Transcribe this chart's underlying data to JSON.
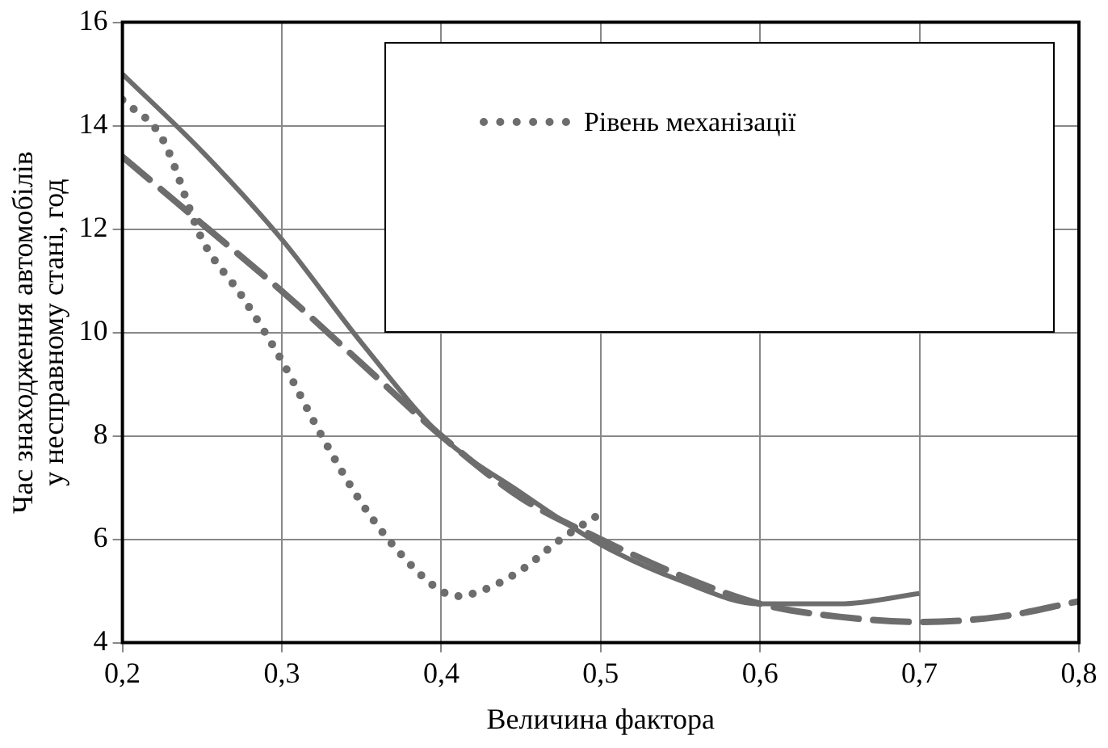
{
  "chart_data": {
    "type": "line",
    "xlabel": "Величина фактора",
    "ylabel": "Час знаходження автомобілів у несправному стані, год",
    "xlim": [
      0.2,
      0.8
    ],
    "xticks": [
      {
        "value": 0.2,
        "label": "0,2"
      },
      {
        "value": 0.3,
        "label": "0,3"
      },
      {
        "value": 0.4,
        "label": "0,4"
      },
      {
        "value": 0.5,
        "label": "0,5"
      },
      {
        "value": 0.6,
        "label": "0,6"
      },
      {
        "value": 0.7,
        "label": "0,7"
      },
      {
        "value": 0.8,
        "label": "0,8"
      }
    ],
    "ylim": [
      4,
      16
    ],
    "yticks": [
      4,
      6,
      8,
      10,
      12,
      14,
      16
    ],
    "grid": true,
    "legend": "top right",
    "marker": "none",
    "series": [
      {
        "color": "#6d6d6d",
        "line_style": "solid",
        "x": [
          0.2,
          0.25,
          0.3,
          0.35,
          0.4,
          0.45,
          0.5,
          0.55,
          0.6,
          0.65,
          0.7
        ],
        "values": [
          15.0,
          13.5,
          11.8,
          9.8,
          8.0,
          6.9,
          5.9,
          5.2,
          4.75,
          4.75,
          4.95
        ]
      },
      {
        "color": "#6d6d6d",
        "line_style": "dashed",
        "x": [
          0.2,
          0.25,
          0.3,
          0.35,
          0.4,
          0.45,
          0.5,
          0.55,
          0.6,
          0.65,
          0.7,
          0.75,
          0.8
        ],
        "values": [
          13.4,
          12.1,
          10.8,
          9.4,
          8.0,
          6.8,
          6.0,
          5.3,
          4.75,
          4.5,
          4.4,
          4.5,
          4.8
        ]
      },
      {
        "name": "Рівень механізації",
        "color": "#6d6d6d",
        "line_style": "dotted",
        "x": [
          0.2,
          0.225,
          0.25,
          0.275,
          0.3,
          0.325,
          0.35,
          0.375,
          0.4,
          0.41,
          0.425,
          0.45,
          0.475,
          0.5
        ],
        "values": [
          14.5,
          13.75,
          11.8,
          10.7,
          9.45,
          8.0,
          6.7,
          5.7,
          5.0,
          4.9,
          5.0,
          5.4,
          6.0,
          6.5
        ]
      }
    ]
  }
}
